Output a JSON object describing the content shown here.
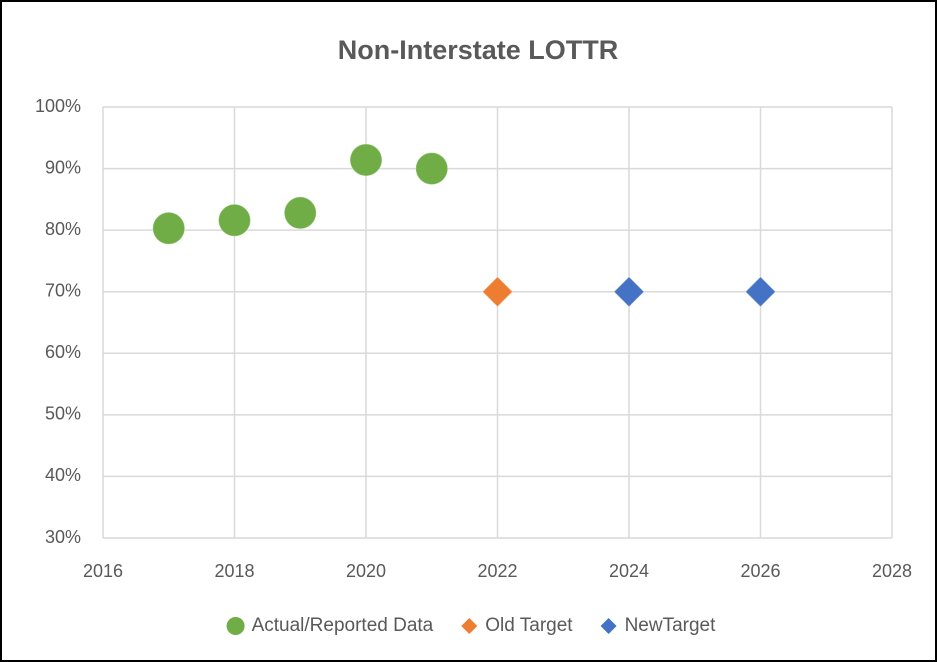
{
  "chart_data": {
    "type": "scatter",
    "title": "Non-Interstate LOTTR",
    "series": [
      {
        "name": "Actual/Reported Data",
        "color": "#70ad47",
        "marker": "circle",
        "x": [
          2017,
          2018,
          2019,
          2020,
          2021
        ],
        "values": [
          80.3,
          81.6,
          82.8,
          91.4,
          90.0
        ]
      },
      {
        "name": "Old Target",
        "color": "#ed7d31",
        "marker": "diamond",
        "x": [
          2022
        ],
        "values": [
          70
        ]
      },
      {
        "name": "NewTarget",
        "color": "#4472c4",
        "marker": "diamond",
        "x": [
          2024,
          2026
        ],
        "values": [
          70,
          70
        ]
      }
    ],
    "xlim": [
      2016,
      2028
    ],
    "xticks": [
      2016,
      2018,
      2020,
      2022,
      2024,
      2026,
      2028
    ],
    "ylim": [
      30,
      100
    ],
    "yticks": [
      {
        "value": 30,
        "label": "30%"
      },
      {
        "value": 40,
        "label": "40%"
      },
      {
        "value": 50,
        "label": "50%"
      },
      {
        "value": 60,
        "label": "60%"
      },
      {
        "value": 70,
        "label": "70%"
      },
      {
        "value": 80,
        "label": "80%"
      },
      {
        "value": 90,
        "label": "90%"
      },
      {
        "value": 100,
        "label": "100%"
      }
    ],
    "grid": true,
    "legend": "bottom"
  }
}
